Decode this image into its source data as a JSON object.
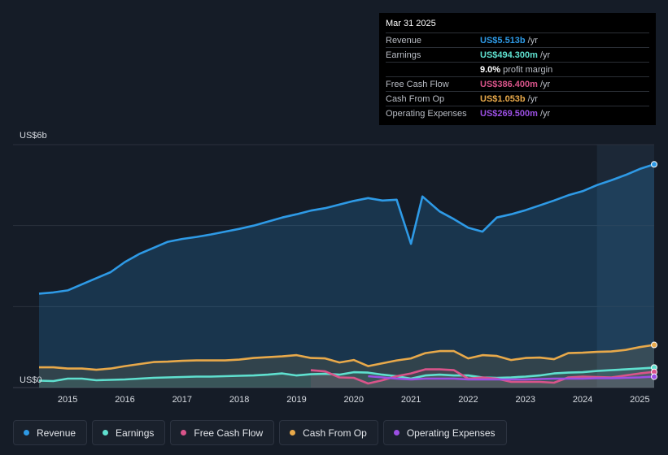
{
  "tooltip": {
    "date": "Mar 31 2025",
    "rows": [
      {
        "label": "Revenue",
        "value": "US$5.513b",
        "unit": "/yr",
        "color": "#2e9ae6"
      },
      {
        "label": "Earnings",
        "value": "US$494.300m",
        "unit": "/yr",
        "color": "#5fe0cf"
      },
      {
        "label": "",
        "value": "9.0%",
        "unit": "profit margin",
        "color": "#ffffff"
      },
      {
        "label": "Free Cash Flow",
        "value": "US$386.400m",
        "unit": "/yr",
        "color": "#d9548a"
      },
      {
        "label": "Cash From Op",
        "value": "US$1.053b",
        "unit": "/yr",
        "color": "#e8a94a"
      },
      {
        "label": "Operating Expenses",
        "value": "US$269.500m",
        "unit": "/yr",
        "color": "#9b4fe3"
      }
    ]
  },
  "legend": [
    {
      "label": "Revenue",
      "color": "#2e9ae6"
    },
    {
      "label": "Earnings",
      "color": "#5fe0cf"
    },
    {
      "label": "Free Cash Flow",
      "color": "#d9548a"
    },
    {
      "label": "Cash From Op",
      "color": "#e8a94a"
    },
    {
      "label": "Operating Expenses",
      "color": "#9b4fe3"
    }
  ],
  "chart_data": {
    "type": "area",
    "title": "",
    "units": "US$",
    "ylabel_top": "US$6b",
    "ylabel_bottom": "US$0",
    "ylim": [
      0,
      6
    ],
    "xlim": [
      2014.5,
      2025.25
    ],
    "x_ticks": [
      "2015",
      "2016",
      "2017",
      "2018",
      "2019",
      "2020",
      "2021",
      "2022",
      "2023",
      "2024",
      "2025"
    ],
    "x_tick_values": [
      2015,
      2016,
      2017,
      2018,
      2019,
      2020,
      2021,
      2022,
      2023,
      2024,
      2025
    ],
    "highlight_start": 2024.25,
    "series": [
      {
        "name": "Revenue",
        "color": "#2e9ae6",
        "fill": true,
        "points": [
          [
            2014.5,
            2.32
          ],
          [
            2014.75,
            2.35
          ],
          [
            2015.0,
            2.4
          ],
          [
            2015.25,
            2.55
          ],
          [
            2015.5,
            2.7
          ],
          [
            2015.75,
            2.85
          ],
          [
            2016.0,
            3.1
          ],
          [
            2016.25,
            3.3
          ],
          [
            2016.5,
            3.45
          ],
          [
            2016.75,
            3.6
          ],
          [
            2017.0,
            3.67
          ],
          [
            2017.25,
            3.72
          ],
          [
            2017.5,
            3.78
          ],
          [
            2017.75,
            3.85
          ],
          [
            2018.0,
            3.92
          ],
          [
            2018.25,
            4.0
          ],
          [
            2018.5,
            4.1
          ],
          [
            2018.75,
            4.2
          ],
          [
            2019.0,
            4.28
          ],
          [
            2019.25,
            4.37
          ],
          [
            2019.5,
            4.43
          ],
          [
            2019.75,
            4.52
          ],
          [
            2020.0,
            4.61
          ],
          [
            2020.25,
            4.68
          ],
          [
            2020.5,
            4.62
          ],
          [
            2020.75,
            4.64
          ],
          [
            2021.0,
            3.55
          ],
          [
            2021.2,
            4.72
          ],
          [
            2021.5,
            4.35
          ],
          [
            2021.75,
            4.16
          ],
          [
            2022.0,
            3.95
          ],
          [
            2022.25,
            3.85
          ],
          [
            2022.5,
            4.2
          ],
          [
            2022.75,
            4.28
          ],
          [
            2023.0,
            4.38
          ],
          [
            2023.25,
            4.5
          ],
          [
            2023.5,
            4.62
          ],
          [
            2023.75,
            4.75
          ],
          [
            2024.0,
            4.85
          ],
          [
            2024.25,
            5.0
          ],
          [
            2024.5,
            5.12
          ],
          [
            2024.75,
            5.25
          ],
          [
            2025.0,
            5.4
          ],
          [
            2025.25,
            5.513
          ]
        ]
      },
      {
        "name": "Earnings",
        "color": "#5fe0cf",
        "fill": true,
        "points": [
          [
            2014.5,
            0.17
          ],
          [
            2014.75,
            0.16
          ],
          [
            2015.0,
            0.22
          ],
          [
            2015.25,
            0.22
          ],
          [
            2015.5,
            0.18
          ],
          [
            2015.75,
            0.19
          ],
          [
            2016.0,
            0.2
          ],
          [
            2016.25,
            0.22
          ],
          [
            2016.5,
            0.24
          ],
          [
            2016.75,
            0.25
          ],
          [
            2017.0,
            0.26
          ],
          [
            2017.25,
            0.27
          ],
          [
            2017.5,
            0.27
          ],
          [
            2017.75,
            0.28
          ],
          [
            2018.0,
            0.29
          ],
          [
            2018.25,
            0.3
          ],
          [
            2018.5,
            0.32
          ],
          [
            2018.75,
            0.35
          ],
          [
            2019.0,
            0.3
          ],
          [
            2019.25,
            0.33
          ],
          [
            2019.5,
            0.34
          ],
          [
            2019.75,
            0.32
          ],
          [
            2020.0,
            0.38
          ],
          [
            2020.25,
            0.37
          ],
          [
            2020.5,
            0.32
          ],
          [
            2020.75,
            0.28
          ],
          [
            2021.0,
            0.22
          ],
          [
            2021.25,
            0.3
          ],
          [
            2021.5,
            0.32
          ],
          [
            2021.75,
            0.3
          ],
          [
            2022.0,
            0.3
          ],
          [
            2022.25,
            0.25
          ],
          [
            2022.5,
            0.24
          ],
          [
            2022.75,
            0.25
          ],
          [
            2023.0,
            0.27
          ],
          [
            2023.25,
            0.3
          ],
          [
            2023.5,
            0.35
          ],
          [
            2023.75,
            0.37
          ],
          [
            2024.0,
            0.38
          ],
          [
            2024.25,
            0.41
          ],
          [
            2024.5,
            0.43
          ],
          [
            2024.75,
            0.45
          ],
          [
            2025.0,
            0.47
          ],
          [
            2025.25,
            0.4943
          ]
        ]
      },
      {
        "name": "Free Cash Flow",
        "color": "#d9548a",
        "fill": true,
        "points": [
          [
            2019.25,
            0.43
          ],
          [
            2019.5,
            0.4
          ],
          [
            2019.75,
            0.25
          ],
          [
            2020.0,
            0.24
          ],
          [
            2020.25,
            0.1
          ],
          [
            2020.5,
            0.18
          ],
          [
            2020.75,
            0.28
          ],
          [
            2021.0,
            0.35
          ],
          [
            2021.25,
            0.45
          ],
          [
            2021.5,
            0.45
          ],
          [
            2021.75,
            0.43
          ],
          [
            2022.0,
            0.22
          ],
          [
            2022.25,
            0.25
          ],
          [
            2022.5,
            0.22
          ],
          [
            2022.75,
            0.14
          ],
          [
            2023.0,
            0.14
          ],
          [
            2023.25,
            0.14
          ],
          [
            2023.5,
            0.12
          ],
          [
            2023.75,
            0.25
          ],
          [
            2024.0,
            0.27
          ],
          [
            2024.25,
            0.26
          ],
          [
            2024.5,
            0.25
          ],
          [
            2024.75,
            0.3
          ],
          [
            2025.0,
            0.35
          ],
          [
            2025.25,
            0.3864
          ]
        ]
      },
      {
        "name": "Cash From Op",
        "color": "#e8a94a",
        "fill": true,
        "points": [
          [
            2014.5,
            0.5
          ],
          [
            2014.75,
            0.5
          ],
          [
            2015.0,
            0.47
          ],
          [
            2015.25,
            0.47
          ],
          [
            2015.5,
            0.44
          ],
          [
            2015.75,
            0.47
          ],
          [
            2016.0,
            0.53
          ],
          [
            2016.25,
            0.58
          ],
          [
            2016.5,
            0.63
          ],
          [
            2016.75,
            0.64
          ],
          [
            2017.0,
            0.66
          ],
          [
            2017.25,
            0.67
          ],
          [
            2017.5,
            0.67
          ],
          [
            2017.75,
            0.67
          ],
          [
            2018.0,
            0.69
          ],
          [
            2018.25,
            0.73
          ],
          [
            2018.5,
            0.75
          ],
          [
            2018.75,
            0.77
          ],
          [
            2019.0,
            0.8
          ],
          [
            2019.25,
            0.73
          ],
          [
            2019.5,
            0.72
          ],
          [
            2019.75,
            0.62
          ],
          [
            2020.0,
            0.68
          ],
          [
            2020.25,
            0.53
          ],
          [
            2020.5,
            0.6
          ],
          [
            2020.75,
            0.67
          ],
          [
            2021.0,
            0.72
          ],
          [
            2021.25,
            0.85
          ],
          [
            2021.5,
            0.9
          ],
          [
            2021.75,
            0.9
          ],
          [
            2022.0,
            0.72
          ],
          [
            2022.25,
            0.8
          ],
          [
            2022.5,
            0.78
          ],
          [
            2022.75,
            0.68
          ],
          [
            2023.0,
            0.73
          ],
          [
            2023.25,
            0.74
          ],
          [
            2023.5,
            0.7
          ],
          [
            2023.75,
            0.85
          ],
          [
            2024.0,
            0.86
          ],
          [
            2024.25,
            0.88
          ],
          [
            2024.5,
            0.89
          ],
          [
            2024.75,
            0.93
          ],
          [
            2025.0,
            1.0
          ],
          [
            2025.25,
            1.053
          ]
        ]
      },
      {
        "name": "Operating Expenses",
        "color": "#9b4fe3",
        "fill": false,
        "points": [
          [
            2020.25,
            0.28
          ],
          [
            2020.5,
            0.25
          ],
          [
            2020.75,
            0.22
          ],
          [
            2021.0,
            0.2
          ],
          [
            2021.25,
            0.22
          ],
          [
            2021.5,
            0.22
          ],
          [
            2021.75,
            0.22
          ],
          [
            2022.0,
            0.2
          ],
          [
            2022.25,
            0.2
          ],
          [
            2022.5,
            0.2
          ],
          [
            2022.75,
            0.2
          ],
          [
            2023.0,
            0.2
          ],
          [
            2023.25,
            0.21
          ],
          [
            2023.5,
            0.22
          ],
          [
            2023.75,
            0.22
          ],
          [
            2024.0,
            0.22
          ],
          [
            2024.25,
            0.23
          ],
          [
            2024.5,
            0.23
          ],
          [
            2024.75,
            0.24
          ],
          [
            2025.0,
            0.25
          ],
          [
            2025.25,
            0.2695
          ]
        ]
      }
    ]
  }
}
